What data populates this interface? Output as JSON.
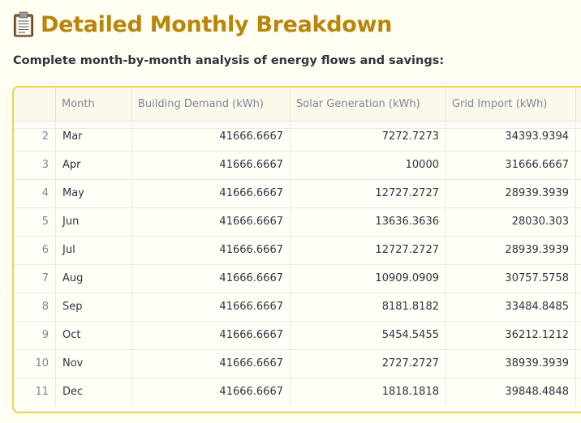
{
  "header": {
    "title": "Detailed Monthly Breakdown",
    "icon": "clipboard-icon",
    "subtitle": "Complete month-by-month analysis of energy flows and savings:"
  },
  "table": {
    "columns": [
      "",
      "Month",
      "Building Demand (kWh)",
      "Solar Generation (kWh)",
      "Grid Import (kWh)"
    ],
    "rows": [
      {
        "idx": "2",
        "month": "Mar",
        "demand": "41666.6667",
        "solar": "7272.7273",
        "grid": "34393.9394"
      },
      {
        "idx": "3",
        "month": "Apr",
        "demand": "41666.6667",
        "solar": "10000",
        "grid": "31666.6667"
      },
      {
        "idx": "4",
        "month": "May",
        "demand": "41666.6667",
        "solar": "12727.2727",
        "grid": "28939.3939"
      },
      {
        "idx": "5",
        "month": "Jun",
        "demand": "41666.6667",
        "solar": "13636.3636",
        "grid": "28030.303"
      },
      {
        "idx": "6",
        "month": "Jul",
        "demand": "41666.6667",
        "solar": "12727.2727",
        "grid": "28939.3939"
      },
      {
        "idx": "7",
        "month": "Aug",
        "demand": "41666.6667",
        "solar": "10909.0909",
        "grid": "30757.5758"
      },
      {
        "idx": "8",
        "month": "Sep",
        "demand": "41666.6667",
        "solar": "8181.8182",
        "grid": "33484.8485"
      },
      {
        "idx": "9",
        "month": "Oct",
        "demand": "41666.6667",
        "solar": "5454.5455",
        "grid": "36212.1212"
      },
      {
        "idx": "10",
        "month": "Nov",
        "demand": "41666.6667",
        "solar": "2727.2727",
        "grid": "38939.3939"
      },
      {
        "idx": "11",
        "month": "Dec",
        "demand": "41666.6667",
        "solar": "1818.1818",
        "grid": "39848.4848"
      }
    ]
  },
  "colors": {
    "title": "#b8860b",
    "border": "#f0d34a",
    "background": "#fffef2"
  }
}
